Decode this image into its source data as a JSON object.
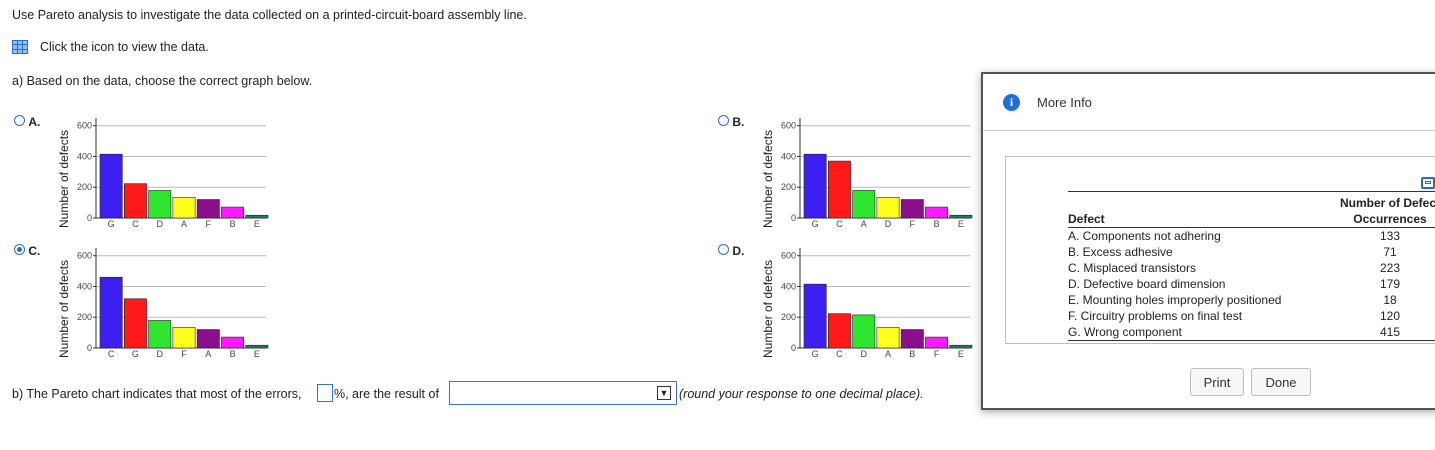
{
  "question": {
    "intro": "Use Pareto analysis to investigate the data collected on a printed-circuit-board assembly line.",
    "data_link": "Click the icon to view the data.",
    "part_a": "a) Based on the data, choose the correct graph below.",
    "part_b_prefix": "b) The Pareto chart indicates that most of the errors,",
    "part_b_mid": "%, are the result of",
    "part_b_suffix": "(round your response to one decimal place).",
    "percent_value": "",
    "selected_option": ""
  },
  "options": [
    {
      "letter": "A.",
      "selected": false
    },
    {
      "letter": "B.",
      "selected": false
    },
    {
      "letter": "C.",
      "selected": true
    },
    {
      "letter": "D.",
      "selected": false
    }
  ],
  "chart_data": [
    {
      "type": "bar",
      "option": "A",
      "ylabel": "Number of defects",
      "categories": [
        "G",
        "C",
        "D",
        "A",
        "F",
        "B",
        "E"
      ],
      "values": [
        415,
        223,
        179,
        133,
        120,
        71,
        18
      ],
      "colors": [
        "#3d1ff0",
        "#ff1a1a",
        "#2fe62f",
        "#ffff1f",
        "#8a0f8a",
        "#ff1aff",
        "#1f7a6e"
      ],
      "yticks": [
        0,
        200,
        400,
        600
      ],
      "ylim": [
        0,
        650
      ],
      "grid": true
    },
    {
      "type": "bar",
      "option": "B",
      "ylabel": "Number of defects",
      "categories": [
        "G",
        "C",
        "A",
        "D",
        "F",
        "B",
        "E"
      ],
      "values": [
        415,
        370,
        179,
        133,
        120,
        71,
        18
      ],
      "colors": [
        "#3d1ff0",
        "#ff1a1a",
        "#2fe62f",
        "#ffff1f",
        "#8a0f8a",
        "#ff1aff",
        "#1f7a6e"
      ],
      "yticks": [
        0,
        200,
        400,
        600
      ],
      "ylim": [
        0,
        650
      ],
      "grid": true
    },
    {
      "type": "bar",
      "option": "C",
      "ylabel": "Number of defects",
      "categories": [
        "C",
        "G",
        "D",
        "F",
        "A",
        "B",
        "E"
      ],
      "values": [
        460,
        320,
        179,
        133,
        120,
        71,
        18
      ],
      "colors": [
        "#3d1ff0",
        "#ff1a1a",
        "#2fe62f",
        "#ffff1f",
        "#8a0f8a",
        "#ff1aff",
        "#1f7a6e"
      ],
      "yticks": [
        0,
        200,
        400,
        600
      ],
      "ylim": [
        0,
        650
      ],
      "grid": true
    },
    {
      "type": "bar",
      "option": "D",
      "ylabel": "Number of defects",
      "categories": [
        "G",
        "C",
        "D",
        "A",
        "B",
        "F",
        "E"
      ],
      "values": [
        415,
        223,
        215,
        133,
        120,
        71,
        18
      ],
      "colors": [
        "#3d1ff0",
        "#ff1a1a",
        "#2fe62f",
        "#ffff1f",
        "#8a0f8a",
        "#ff1aff",
        "#1f7a6e"
      ],
      "yticks": [
        0,
        200,
        400,
        600
      ],
      "ylim": [
        0,
        650
      ],
      "grid": true
    }
  ],
  "modal": {
    "title": "More Info",
    "col_defect": "Defect",
    "col_count_line1": "Number of Defect",
    "col_count_line2": "Occurrences",
    "rows": [
      {
        "defect": "A. Components not adhering",
        "count": "133"
      },
      {
        "defect": "B. Excess adhesive",
        "count": "71"
      },
      {
        "defect": "C. Misplaced transistors",
        "count": "223"
      },
      {
        "defect": "D. Defective board dimension",
        "count": "179"
      },
      {
        "defect": "E. Mounting holes improperly positioned",
        "count": "18"
      },
      {
        "defect": "F. Circuitry problems on final test",
        "count": "120"
      },
      {
        "defect": "G. Wrong component",
        "count": "415"
      }
    ],
    "print_label": "Print",
    "done_label": "Done"
  }
}
